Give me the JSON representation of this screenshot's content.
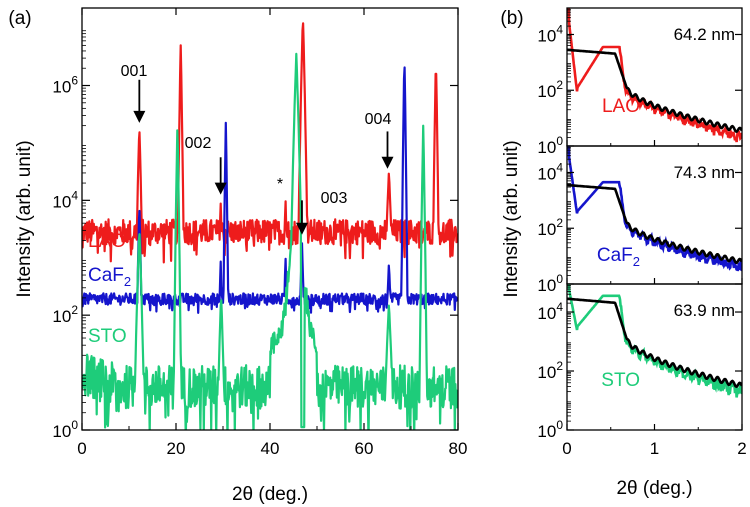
{
  "chart_data": [
    {
      "type": "line",
      "panel": "(a)",
      "xlabel": "2θ (deg.)",
      "ylabel": "Intensity (arb. unit)",
      "xlim": [
        0,
        80
      ],
      "ylim_log10": [
        0,
        7.35
      ],
      "yscale": "log",
      "x_ticks": [
        0,
        20,
        40,
        60,
        80
      ],
      "y_ticks": [
        {
          "exp": 0,
          "label": "10",
          "sup": "0"
        },
        {
          "exp": 2,
          "label": "10",
          "sup": "2"
        },
        {
          "exp": 4,
          "label": "10",
          "sup": "4"
        },
        {
          "exp": 6,
          "label": "10",
          "sup": "6"
        }
      ],
      "series": [
        {
          "name": "LAO",
          "label_main": "LAO",
          "label_sub": "",
          "color": "#ee1c1c",
          "base_log": 3.45,
          "noise": 0.22,
          "peaks": [
            [
              12.2,
              5.3,
              0.35
            ],
            [
              21.0,
              6.7,
              0.25
            ],
            [
              29.5,
              4.0,
              0.35
            ],
            [
              43.3,
              4.05,
              0.3
            ],
            [
              47.0,
              7.2,
              0.35
            ],
            [
              65.3,
              4.5,
              0.55
            ],
            [
              75.3,
              6.45,
              0.25
            ]
          ]
        },
        {
          "name": "CaF2",
          "label_main": "CaF",
          "label_sub": "2",
          "color": "#1515cc",
          "base_log": 2.28,
          "noise": 0.1,
          "peaks": [
            [
              12.2,
              3.95,
              0.3
            ],
            [
              29.5,
              3.0,
              0.3
            ],
            [
              30.6,
              5.35,
              0.22
            ],
            [
              43.3,
              3.05,
              0.3
            ],
            [
              46.8,
              3.25,
              0.4
            ],
            [
              65.3,
              2.9,
              0.55
            ],
            [
              68.6,
              6.5,
              0.22
            ]
          ]
        },
        {
          "name": "STO",
          "label_main": "STO",
          "label_sub": "",
          "color": "#1ecc7a",
          "base_log": 0.75,
          "noise": 0.38,
          "peaks": [
            [
              12.2,
              3.5,
              0.45
            ],
            [
              20.3,
              5.3,
              0.25
            ],
            [
              29.6,
              2.35,
              0.45
            ],
            [
              45.6,
              6.55,
              0.45
            ],
            [
              65.3,
              2.2,
              0.6
            ],
            [
              72.6,
              5.3,
              0.25
            ]
          ],
          "dips": [
            [
              47.0,
              0.05
            ]
          ]
        }
      ],
      "reflection_labels": [
        {
          "text": "001",
          "x": 12.2,
          "arrow_tip_log": 5.35,
          "arrow_from_log": 6.1
        },
        {
          "text": "002",
          "x": 29.5,
          "arrow_tip_log": 4.1,
          "arrow_from_log": 4.75
        },
        {
          "text": "003",
          "x": 46.8,
          "arrow_tip_log": 3.4,
          "arrow_from_log": 4.0
        },
        {
          "text": "004",
          "x": 65.0,
          "arrow_tip_log": 4.55,
          "arrow_from_log": 5.2
        },
        {
          "text": "*",
          "x": 42.8,
          "arrow_tip_log": null,
          "arrow_from_log": null
        }
      ]
    },
    {
      "type": "line",
      "panel": "(b)",
      "xlabel": "2θ (deg.)",
      "ylabel": "Intensity (arb. unit)",
      "xlim": [
        0,
        2
      ],
      "x_ticks": [
        0,
        1,
        2
      ],
      "yscale": "log",
      "subplots": [
        {
          "name": "LAO",
          "thickness": "64.2 nm",
          "color": "#ee1c1c",
          "ylim_log10": [
            0,
            4.95
          ],
          "y_ticks": [
            {
              "exp": 0,
              "label": "10",
              "sup": "0"
            },
            {
              "exp": 2,
              "label": "10",
              "sup": "2"
            },
            {
              "exp": 4,
              "label": "10",
              "sup": "4"
            }
          ],
          "plateau_log": 3.45,
          "tail_end_log": 0.35,
          "dip_log": 1.8
        },
        {
          "name": "CaF2",
          "label_main": "CaF",
          "label_sub": "2",
          "thickness": "74.3 nm",
          "color": "#1515cc",
          "ylim_log10": [
            0,
            4.95
          ],
          "y_ticks": [
            {
              "exp": 0,
              "label": "10",
              "sup": "0"
            },
            {
              "exp": 2,
              "label": "10",
              "sup": "2"
            },
            {
              "exp": 4,
              "label": "10",
              "sup": "4"
            }
          ],
          "plateau_log": 3.55,
          "tail_end_log": 0.6,
          "dip_log": 2.4
        },
        {
          "name": "STO",
          "thickness": "63.9 nm",
          "color": "#1ecc7a",
          "ylim_log10": [
            0,
            4.95
          ],
          "y_ticks": [
            {
              "exp": 0,
              "label": "10",
              "sup": "0"
            },
            {
              "exp": 2,
              "label": "10",
              "sup": "2"
            },
            {
              "exp": 4,
              "label": "10",
              "sup": "4"
            }
          ],
          "plateau_log": 4.45,
          "tail_end_log": 1.3,
          "dip_log": 3.3
        }
      ],
      "fit_color": "#000000"
    }
  ]
}
